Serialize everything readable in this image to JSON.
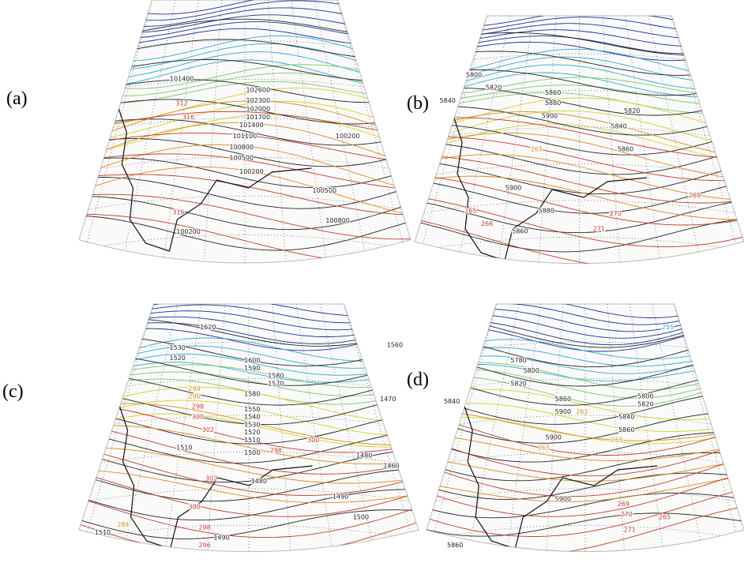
{
  "panels": [
    {
      "label": "(a)",
      "contour_labels": [
        {
          "value": 101400,
          "color": "#222222"
        },
        {
          "value": 102600,
          "color": "#222222"
        },
        {
          "value": 102300,
          "color": "#222222"
        },
        {
          "value": 102000,
          "color": "#222222"
        },
        {
          "value": 101700,
          "color": "#222222"
        },
        {
          "value": 101400,
          "color": "#222222"
        },
        {
          "value": 101100,
          "color": "#222222"
        },
        {
          "value": 100800,
          "color": "#222222"
        },
        {
          "value": 100500,
          "color": "#222222"
        },
        {
          "value": 100200,
          "color": "#222222"
        },
        {
          "value": 100200,
          "color": "#222222"
        },
        {
          "value": 100500,
          "color": "#222222"
        },
        {
          "value": 100800,
          "color": "#222222"
        },
        {
          "value": 100200,
          "color": "#222222"
        },
        {
          "value": 312,
          "color": "#c0392b"
        },
        {
          "value": 316,
          "color": "#c0392b"
        },
        {
          "value": 316,
          "color": "#c0392b"
        }
      ]
    },
    {
      "label": "(b)",
      "contour_labels": [
        {
          "value": 5800,
          "color": "#222222"
        },
        {
          "value": 5820,
          "color": "#222222"
        },
        {
          "value": 5840,
          "color": "#222222"
        },
        {
          "value": 5860,
          "color": "#222222"
        },
        {
          "value": 5880,
          "color": "#222222"
        },
        {
          "value": 5900,
          "color": "#222222"
        },
        {
          "value": 5820,
          "color": "#222222"
        },
        {
          "value": 5840,
          "color": "#222222"
        },
        {
          "value": 5860,
          "color": "#222222"
        },
        {
          "value": 5900,
          "color": "#222222"
        },
        {
          "value": 5880,
          "color": "#222222"
        },
        {
          "value": 5860,
          "color": "#222222"
        },
        {
          "value": 270,
          "color": "#c0392b"
        },
        {
          "value": 271,
          "color": "#c0392b"
        },
        {
          "value": 269,
          "color": "#c0392b"
        },
        {
          "value": 265,
          "color": "#c0392b"
        },
        {
          "value": 266,
          "color": "#c0392b"
        },
        {
          "value": 265,
          "color": "#d98a1c"
        }
      ]
    },
    {
      "label": "(c)",
      "contour_labels": [
        {
          "value": 1620,
          "color": "#222222"
        },
        {
          "value": 1530,
          "color": "#222222"
        },
        {
          "value": 1520,
          "color": "#222222"
        },
        {
          "value": 1600,
          "color": "#222222"
        },
        {
          "value": 1590,
          "color": "#222222"
        },
        {
          "value": 1580,
          "color": "#222222"
        },
        {
          "value": 1570,
          "color": "#222222"
        },
        {
          "value": 1560,
          "color": "#222222"
        },
        {
          "value": 1580,
          "color": "#222222"
        },
        {
          "value": 1550,
          "color": "#222222"
        },
        {
          "value": 1540,
          "color": "#222222"
        },
        {
          "value": 1530,
          "color": "#222222"
        },
        {
          "value": 1520,
          "color": "#222222"
        },
        {
          "value": 1510,
          "color": "#222222"
        },
        {
          "value": 1500,
          "color": "#222222"
        },
        {
          "value": 1480,
          "color": "#222222"
        },
        {
          "value": 1470,
          "color": "#222222"
        },
        {
          "value": 1480,
          "color": "#222222"
        },
        {
          "value": 1460,
          "color": "#222222"
        },
        {
          "value": 1490,
          "color": "#222222"
        },
        {
          "value": 1500,
          "color": "#222222"
        },
        {
          "value": 1490,
          "color": "#222222"
        },
        {
          "value": 1510,
          "color": "#222222"
        },
        {
          "value": 1510,
          "color": "#222222"
        },
        {
          "value": 298,
          "color": "#c0392b"
        },
        {
          "value": 300,
          "color": "#c0392b"
        },
        {
          "value": 302,
          "color": "#c0392b"
        },
        {
          "value": 302,
          "color": "#c0392b"
        },
        {
          "value": 300,
          "color": "#c0392b"
        },
        {
          "value": 298,
          "color": "#c0392b"
        },
        {
          "value": 296,
          "color": "#c0392b"
        },
        {
          "value": 300,
          "color": "#c0392b"
        },
        {
          "value": 298,
          "color": "#c0392b"
        },
        {
          "value": 296,
          "color": "#d98a1c"
        },
        {
          "value": 294,
          "color": "#d98a1c"
        },
        {
          "value": 284,
          "color": "#d98a1c"
        }
      ]
    },
    {
      "label": "(d)",
      "contour_labels": [
        {
          "value": 5780,
          "color": "#222222"
        },
        {
          "value": 5800,
          "color": "#222222"
        },
        {
          "value": 5820,
          "color": "#222222"
        },
        {
          "value": 5840,
          "color": "#222222"
        },
        {
          "value": 5860,
          "color": "#222222"
        },
        {
          "value": 5900,
          "color": "#222222"
        },
        {
          "value": 5800,
          "color": "#222222"
        },
        {
          "value": 5820,
          "color": "#222222"
        },
        {
          "value": 5840,
          "color": "#222222"
        },
        {
          "value": 5860,
          "color": "#222222"
        },
        {
          "value": 5900,
          "color": "#222222"
        },
        {
          "value": 5900,
          "color": "#222222"
        },
        {
          "value": 5860,
          "color": "#222222"
        },
        {
          "value": 271,
          "color": "#c0392b"
        },
        {
          "value": 270,
          "color": "#c0392b"
        },
        {
          "value": 269,
          "color": "#c0392b"
        },
        {
          "value": 265,
          "color": "#c0392b"
        },
        {
          "value": 265,
          "color": "#d98a1c"
        },
        {
          "value": 265,
          "color": "#d98a1c"
        },
        {
          "value": 261,
          "color": "#d98a1c"
        },
        {
          "value": 255,
          "color": "#33aacc"
        }
      ]
    }
  ]
}
